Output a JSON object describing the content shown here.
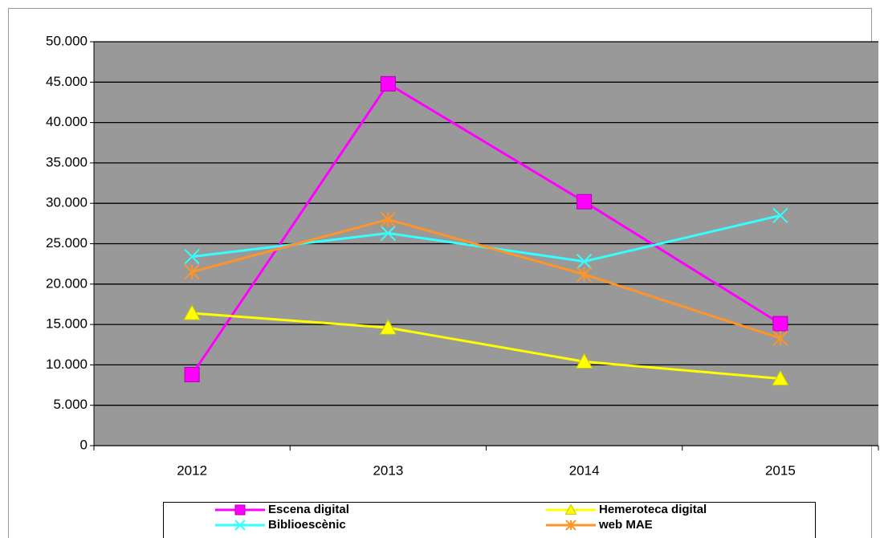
{
  "chart_data": {
    "type": "line",
    "categories": [
      "2012",
      "2013",
      "2014",
      "2015"
    ],
    "series": [
      {
        "name": "Escena digital",
        "color": "#ff00ff",
        "marker": "square",
        "values": [
          8800,
          44800,
          30200,
          15100
        ]
      },
      {
        "name": "Hemeroteca digital",
        "color": "#ffff00",
        "marker": "triangle",
        "values": [
          16400,
          14600,
          10400,
          8300
        ]
      },
      {
        "name": "Biblioescènic",
        "color": "#33ffff",
        "marker": "x",
        "values": [
          23400,
          26300,
          22800,
          28500
        ]
      },
      {
        "name": "web MAE",
        "color": "#ff9428",
        "marker": "star",
        "values": [
          21500,
          28000,
          21200,
          13300
        ]
      }
    ],
    "ylim": [
      0,
      50000
    ],
    "yticks": [
      0,
      {
        "value": 5000,
        "label": "5.000"
      },
      {
        "value": 10000,
        "label": "10.000"
      },
      {
        "value": 15000,
        "label": "15.000"
      },
      {
        "value": 20000,
        "label": "20.000"
      },
      {
        "value": 25000,
        "label": "25.000"
      },
      {
        "value": 30000,
        "label": "30.000"
      },
      {
        "value": 35000,
        "label": "35.000"
      },
      {
        "value": 40000,
        "label": "40.000"
      },
      {
        "value": 45000,
        "label": "45.000"
      },
      {
        "value": 50000,
        "label": "50.000"
      }
    ],
    "grid": true,
    "legend": "bottom"
  }
}
